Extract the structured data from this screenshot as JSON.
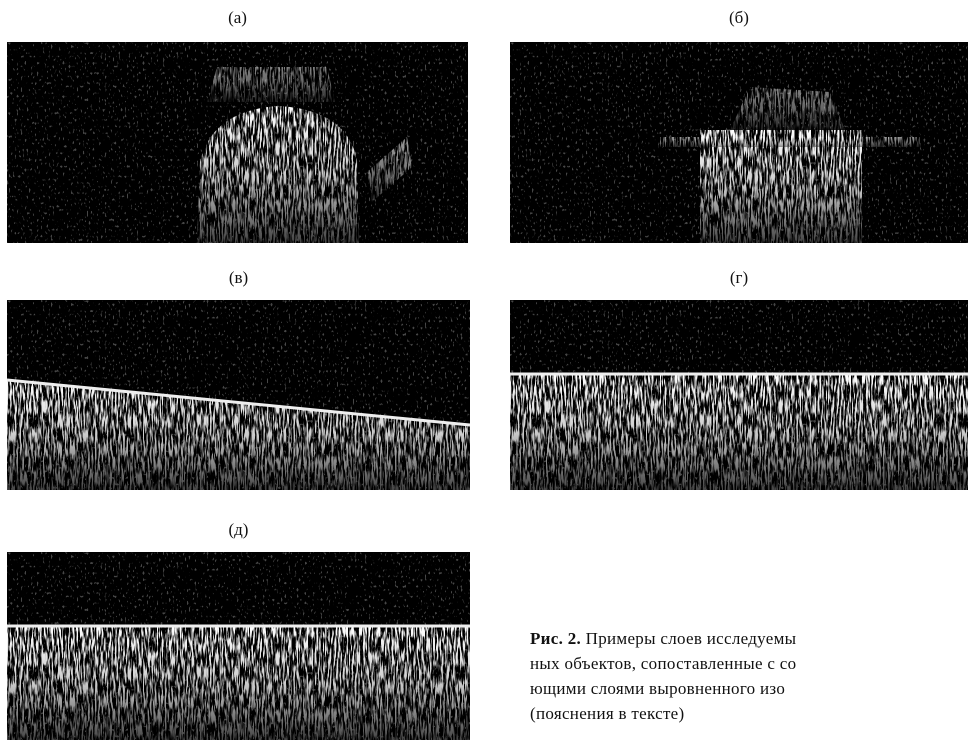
{
  "figure": {
    "panels": [
      {
        "label": "(а)"
      },
      {
        "label": "(б)"
      },
      {
        "label": "(в)"
      },
      {
        "label": "(г)"
      },
      {
        "label": "(д)"
      }
    ],
    "caption": {
      "label": "Рис. 2.",
      "lines": [
        " Примеры слоев исследуемы",
        "ных объектов, сопоставленные с со",
        "ющими слоями выровненного изо",
        "(пояснения в тексте)"
      ]
    }
  }
}
